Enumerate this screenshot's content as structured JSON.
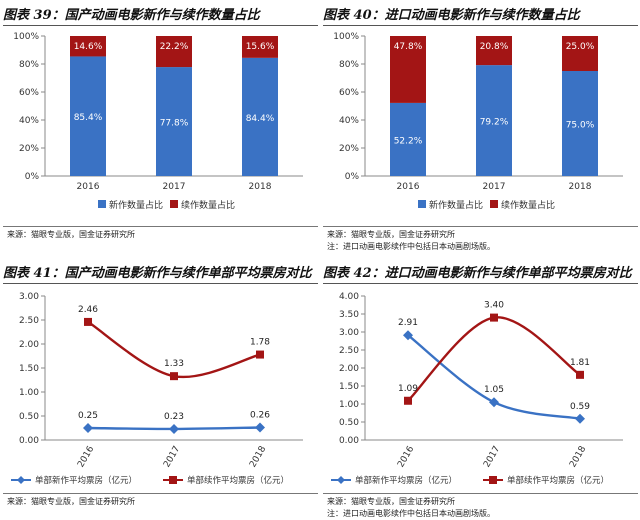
{
  "colors": {
    "blue": "#3a72c4",
    "red": "#a31515"
  },
  "panels": [
    {
      "title": "图表 39：国产动画电影新作与续作数量占比",
      "source": [
        "来源：猫眼专业版，国金证券研究所"
      ],
      "chart_data": {
        "type": "bar",
        "stacked": true,
        "categories": [
          "2016",
          "2017",
          "2018"
        ],
        "series": [
          {
            "name": "新作数量占比",
            "values": [
              85.4,
              77.8,
              84.4
            ],
            "labels": [
              "85.4%",
              "77.8%",
              "84.4%"
            ],
            "color": "#3a72c4"
          },
          {
            "name": "续作数量占比",
            "values": [
              14.6,
              22.2,
              15.6
            ],
            "labels": [
              "14.6%",
              "22.2%",
              "15.6%"
            ],
            "color": "#a31515"
          }
        ],
        "ylim": [
          0,
          100
        ],
        "yticks": [
          "0%",
          "20%",
          "40%",
          "60%",
          "80%",
          "100%"
        ],
        "legend": "bottom"
      }
    },
    {
      "title": "图表 40：进口动画电影新作与续作数量占比",
      "source": [
        "来源：猫眼专业版，国金证券研究所",
        "注：进口动画电影续作中包括日本动画剧场版。"
      ],
      "chart_data": {
        "type": "bar",
        "stacked": true,
        "categories": [
          "2016",
          "2017",
          "2018"
        ],
        "series": [
          {
            "name": "新作数量占比",
            "values": [
              52.2,
              79.2,
              75.0
            ],
            "labels": [
              "52.2%",
              "79.2%",
              "75.0%"
            ],
            "color": "#3a72c4"
          },
          {
            "name": "续作数量占比",
            "values": [
              47.8,
              20.8,
              25.0
            ],
            "labels": [
              "47.8%",
              "20.8%",
              "25.0%"
            ],
            "color": "#a31515"
          }
        ],
        "ylim": [
          0,
          100
        ],
        "yticks": [
          "0%",
          "20%",
          "40%",
          "60%",
          "80%",
          "100%"
        ],
        "legend": "bottom"
      }
    },
    {
      "title": "图表 41：国产动画电影新作与续作单部平均票房对比",
      "source": [
        "来源：猫眼专业版，国金证券研究所"
      ],
      "chart_data": {
        "type": "line",
        "categories": [
          "2016",
          "2017",
          "2018"
        ],
        "series": [
          {
            "name": "单部新作平均票房（亿元）",
            "values": [
              0.25,
              0.23,
              0.26
            ],
            "labels": [
              "0.25",
              "0.23",
              "0.26"
            ],
            "color": "#3a72c4",
            "marker": "diamond"
          },
          {
            "name": "单部续作平均票房（亿元）",
            "values": [
              2.46,
              1.33,
              1.78
            ],
            "labels": [
              "2.46",
              "1.33",
              "1.78"
            ],
            "color": "#a31515",
            "marker": "square"
          }
        ],
        "ylim": [
          0,
          3.0
        ],
        "yticks": [
          "0.00",
          "0.50",
          "1.00",
          "1.50",
          "2.00",
          "2.50",
          "3.00"
        ],
        "legend": "bottom"
      }
    },
    {
      "title": "图表 42：进口动画电影新作与续作单部平均票房对比",
      "source": [
        "来源：猫眼专业版，国金证券研究所",
        "注：进口动画电影续作中包括日本动画剧场版。"
      ],
      "chart_data": {
        "type": "line",
        "categories": [
          "2016",
          "2017",
          "2018"
        ],
        "series": [
          {
            "name": "单部新作平均票房（亿元）",
            "values": [
              2.91,
              1.05,
              0.59
            ],
            "labels": [
              "2.91",
              "1.05",
              "0.59"
            ],
            "color": "#3a72c4",
            "marker": "diamond"
          },
          {
            "name": "单部续作平均票房（亿元）",
            "values": [
              1.09,
              3.4,
              1.81
            ],
            "labels": [
              "1.09",
              "3.40",
              "1.81"
            ],
            "color": "#a31515",
            "marker": "square"
          }
        ],
        "ylim": [
          0,
          4.0
        ],
        "yticks": [
          "0.00",
          "0.50",
          "1.00",
          "1.50",
          "2.00",
          "2.50",
          "3.00",
          "3.50",
          "4.00"
        ],
        "legend": "bottom"
      }
    }
  ]
}
